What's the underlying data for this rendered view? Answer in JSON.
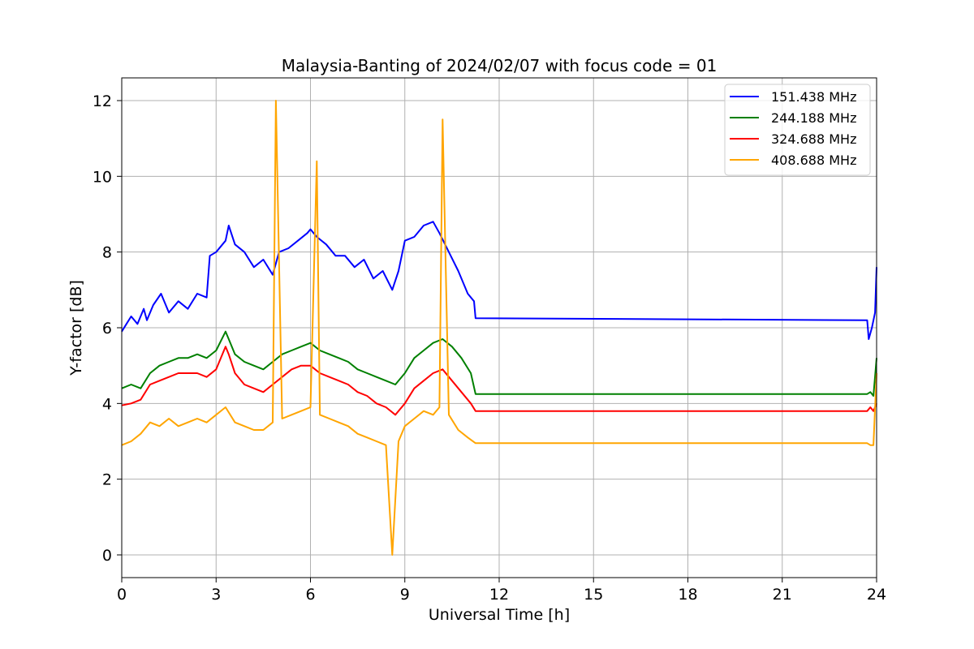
{
  "chart_data": {
    "type": "line",
    "title": "Malaysia-Banting of 2024/02/07 with focus code = 01",
    "xlabel": "Universal Time [h]",
    "ylabel": "Y-factor [dB]",
    "xlim": [
      0,
      24
    ],
    "ylim": [
      -0.6,
      12.6
    ],
    "xticks": [
      0,
      3,
      6,
      9,
      12,
      15,
      18,
      21,
      24
    ],
    "yticks": [
      0,
      2,
      4,
      6,
      8,
      10,
      12
    ],
    "grid": true,
    "legend_position": "top-right",
    "series": [
      {
        "name": "151.438 MHz",
        "color": "#0000ff",
        "x": [
          0,
          0.15,
          0.3,
          0.5,
          0.7,
          0.8,
          1.0,
          1.25,
          1.5,
          1.8,
          2.1,
          2.4,
          2.7,
          2.8,
          3.0,
          3.3,
          3.4,
          3.6,
          3.9,
          4.2,
          4.5,
          4.8,
          5.0,
          5.3,
          5.6,
          5.9,
          6.0,
          6.2,
          6.5,
          6.8,
          7.1,
          7.4,
          7.7,
          8.0,
          8.3,
          8.6,
          8.8,
          9.0,
          9.3,
          9.6,
          9.9,
          10.1,
          10.4,
          10.7,
          11.0,
          11.2,
          11.25,
          23.7,
          23.75,
          23.85,
          23.95,
          24.0
        ],
        "y": [
          5.9,
          6.1,
          6.3,
          6.1,
          6.5,
          6.2,
          6.6,
          6.9,
          6.4,
          6.7,
          6.5,
          6.9,
          6.8,
          7.9,
          8.0,
          8.3,
          8.7,
          8.2,
          8.0,
          7.6,
          7.8,
          7.4,
          8.0,
          8.1,
          8.3,
          8.5,
          8.6,
          8.4,
          8.2,
          7.9,
          7.9,
          7.6,
          7.8,
          7.3,
          7.5,
          7.0,
          7.5,
          8.3,
          8.4,
          8.7,
          8.8,
          8.5,
          8.0,
          7.5,
          6.9,
          6.7,
          6.25,
          6.2,
          5.7,
          6.0,
          6.4,
          7.6
        ]
      },
      {
        "name": "244.188 MHz",
        "color": "#008000",
        "x": [
          0,
          0.3,
          0.6,
          0.9,
          1.2,
          1.5,
          1.8,
          2.1,
          2.4,
          2.7,
          3.0,
          3.3,
          3.4,
          3.6,
          3.9,
          4.2,
          4.5,
          4.8,
          5.1,
          5.4,
          5.7,
          6.0,
          6.3,
          6.6,
          6.9,
          7.2,
          7.5,
          7.8,
          8.1,
          8.4,
          8.7,
          9.0,
          9.3,
          9.6,
          9.9,
          10.2,
          10.5,
          10.8,
          11.1,
          11.25,
          23.7,
          23.8,
          23.9,
          24.0
        ],
        "y": [
          4.4,
          4.5,
          4.4,
          4.8,
          5.0,
          5.1,
          5.2,
          5.2,
          5.3,
          5.2,
          5.4,
          5.9,
          5.7,
          5.3,
          5.1,
          5.0,
          4.9,
          5.1,
          5.3,
          5.4,
          5.5,
          5.6,
          5.4,
          5.3,
          5.2,
          5.1,
          4.9,
          4.8,
          4.7,
          4.6,
          4.5,
          4.8,
          5.2,
          5.4,
          5.6,
          5.7,
          5.5,
          5.2,
          4.8,
          4.25,
          4.25,
          4.3,
          4.2,
          5.2
        ]
      },
      {
        "name": "324.688 MHz",
        "color": "#ff0000",
        "x": [
          0,
          0.3,
          0.6,
          0.9,
          1.2,
          1.5,
          1.8,
          2.1,
          2.4,
          2.7,
          3.0,
          3.3,
          3.4,
          3.6,
          3.9,
          4.2,
          4.5,
          4.8,
          5.1,
          5.4,
          5.7,
          6.0,
          6.3,
          6.6,
          6.9,
          7.2,
          7.5,
          7.8,
          8.1,
          8.4,
          8.7,
          9.0,
          9.3,
          9.6,
          9.9,
          10.2,
          10.5,
          10.8,
          11.1,
          11.25,
          23.7,
          23.8,
          23.9,
          24.0
        ],
        "y": [
          3.95,
          4.0,
          4.1,
          4.5,
          4.6,
          4.7,
          4.8,
          4.8,
          4.8,
          4.7,
          4.9,
          5.5,
          5.3,
          4.8,
          4.5,
          4.4,
          4.3,
          4.5,
          4.7,
          4.9,
          5.0,
          5.0,
          4.8,
          4.7,
          4.6,
          4.5,
          4.3,
          4.2,
          4.0,
          3.9,
          3.7,
          4.0,
          4.4,
          4.6,
          4.8,
          4.9,
          4.6,
          4.3,
          4.0,
          3.8,
          3.8,
          3.9,
          3.8,
          4.0
        ]
      },
      {
        "name": "408.688 MHz",
        "color": "#ffa500",
        "x": [
          0,
          0.3,
          0.6,
          0.9,
          1.2,
          1.5,
          1.8,
          2.1,
          2.4,
          2.7,
          3.0,
          3.3,
          3.6,
          3.9,
          4.2,
          4.5,
          4.8,
          4.9,
          5.1,
          5.4,
          5.7,
          6.0,
          6.2,
          6.3,
          6.6,
          6.9,
          7.2,
          7.5,
          7.8,
          8.1,
          8.4,
          8.6,
          8.8,
          9.0,
          9.3,
          9.6,
          9.9,
          10.1,
          10.2,
          10.4,
          10.7,
          11.0,
          11.25,
          23.7,
          23.8,
          23.9,
          24.0
        ],
        "y": [
          2.9,
          3.0,
          3.2,
          3.5,
          3.4,
          3.6,
          3.4,
          3.5,
          3.6,
          3.5,
          3.7,
          3.9,
          3.5,
          3.4,
          3.3,
          3.3,
          3.5,
          12.0,
          3.6,
          3.7,
          3.8,
          3.9,
          10.4,
          3.7,
          3.6,
          3.5,
          3.4,
          3.2,
          3.1,
          3.0,
          2.9,
          0.0,
          3.0,
          3.4,
          3.6,
          3.8,
          3.7,
          3.9,
          11.5,
          3.7,
          3.3,
          3.1,
          2.95,
          2.95,
          2.9,
          2.9,
          4.8
        ]
      }
    ]
  }
}
